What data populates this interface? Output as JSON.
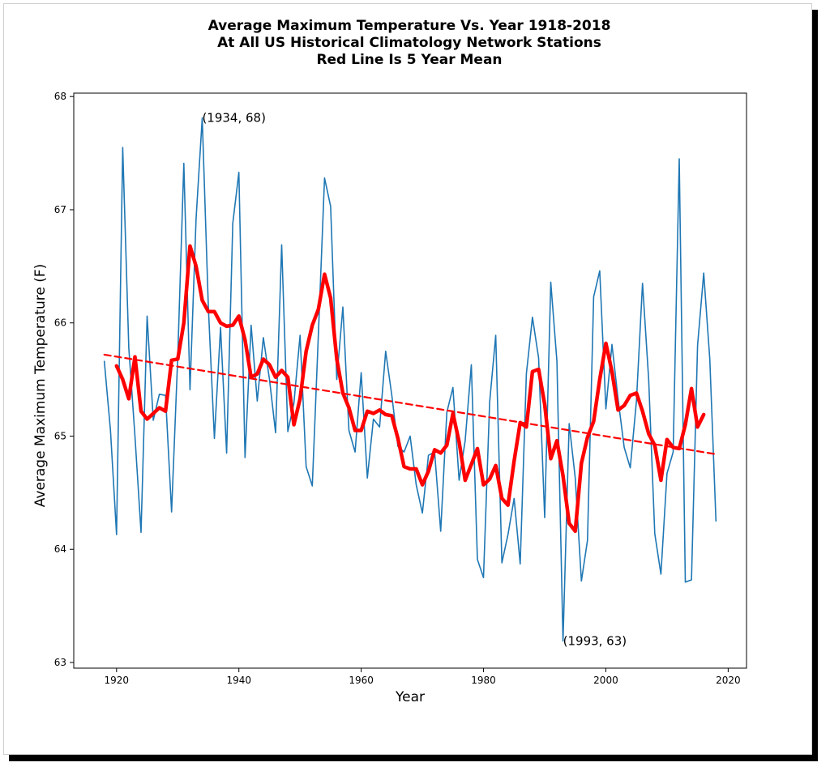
{
  "chart_data": {
    "type": "line",
    "title": [
      "Average Maximum Temperature Vs. Year 1918-2018",
      "At All US Historical Climatology Network Stations",
      "Red Line Is 5 Year Mean"
    ],
    "xlabel": "Year",
    "ylabel": "Average Maximum Temperature (F)",
    "xlim": [
      1913,
      2023
    ],
    "ylim": [
      62.95,
      68.03
    ],
    "xticks": [
      1920,
      1940,
      1960,
      1980,
      2000,
      2020
    ],
    "yticks": [
      63,
      64,
      65,
      66,
      67,
      68
    ],
    "grid": false,
    "colors": {
      "annual": "#1f77b4",
      "mean": "#ff0000",
      "trend": "#ff0000"
    },
    "series": [
      {
        "key": "annual",
        "x": [
          1918,
          1919,
          1920,
          1921,
          1922,
          1923,
          1924,
          1925,
          1926,
          1927,
          1928,
          1929,
          1930,
          1931,
          1932,
          1933,
          1934,
          1935,
          1936,
          1937,
          1938,
          1939,
          1940,
          1941,
          1942,
          1943,
          1944,
          1945,
          1946,
          1947,
          1948,
          1949,
          1950,
          1951,
          1952,
          1953,
          1954,
          1955,
          1956,
          1957,
          1958,
          1959,
          1960,
          1961,
          1962,
          1963,
          1964,
          1965,
          1966,
          1967,
          1968,
          1969,
          1970,
          1971,
          1972,
          1973,
          1974,
          1975,
          1976,
          1977,
          1978,
          1979,
          1980,
          1981,
          1982,
          1983,
          1984,
          1985,
          1986,
          1987,
          1988,
          1989,
          1990,
          1991,
          1992,
          1993,
          1994,
          1995,
          1996,
          1997,
          1998,
          1999,
          2000,
          2001,
          2002,
          2003,
          2004,
          2005,
          2006,
          2007,
          2008,
          2009,
          2010,
          2011,
          2012,
          2013,
          2014,
          2015,
          2016,
          2017,
          2018
        ],
        "y": [
          65.66,
          65.05,
          64.13,
          67.55,
          65.78,
          65.0,
          64.15,
          66.06,
          65.14,
          65.37,
          65.36,
          64.33,
          65.7,
          67.41,
          65.41,
          66.92,
          67.81,
          66.15,
          64.98,
          65.96,
          64.85,
          66.88,
          67.33,
          64.81,
          65.98,
          65.31,
          65.87,
          65.5,
          65.03,
          66.69,
          65.04,
          65.29,
          65.89,
          64.73,
          64.56,
          65.9,
          67.28,
          67.03,
          65.5,
          66.14,
          65.05,
          64.86,
          65.56,
          64.63,
          65.15,
          65.08,
          65.75,
          65.36,
          64.91,
          64.86,
          65.0,
          64.57,
          64.32,
          64.83,
          64.86,
          64.16,
          65.21,
          65.43,
          64.61,
          64.96,
          65.63,
          63.91,
          63.75,
          65.3,
          65.89,
          63.88,
          64.13,
          64.45,
          63.87,
          65.55,
          66.05,
          65.69,
          64.28,
          66.36,
          65.66,
          63.19,
          65.11,
          64.63,
          63.72,
          64.08,
          66.23,
          66.46,
          65.24,
          65.81,
          65.33,
          64.9,
          64.72,
          65.31,
          66.35,
          65.5,
          64.14,
          63.78,
          64.67,
          64.86,
          67.45,
          63.71,
          63.73,
          65.8,
          66.44,
          65.68,
          64.25
        ]
      },
      {
        "key": "mean",
        "x": [
          1920,
          1921,
          1922,
          1923,
          1924,
          1925,
          1926,
          1927,
          1928,
          1929,
          1930,
          1931,
          1932,
          1933,
          1934,
          1935,
          1936,
          1937,
          1938,
          1939,
          1940,
          1941,
          1942,
          1943,
          1944,
          1945,
          1946,
          1947,
          1948,
          1949,
          1950,
          1951,
          1952,
          1953,
          1954,
          1955,
          1956,
          1957,
          1958,
          1959,
          1960,
          1961,
          1962,
          1963,
          1964,
          1965,
          1966,
          1967,
          1968,
          1969,
          1970,
          1971,
          1972,
          1973,
          1974,
          1975,
          1976,
          1977,
          1978,
          1979,
          1980,
          1981,
          1982,
          1983,
          1984,
          1985,
          1986,
          1987,
          1988,
          1989,
          1990,
          1991,
          1992,
          1993,
          1994,
          1995,
          1996,
          1997,
          1998,
          1999,
          2000,
          2001,
          2002,
          2003,
          2004,
          2005,
          2006,
          2007,
          2008,
          2009,
          2010,
          2011,
          2012,
          2013,
          2014,
          2015,
          2016
        ],
        "y": [
          65.62,
          65.5,
          65.33,
          65.7,
          65.22,
          65.15,
          65.2,
          65.25,
          65.22,
          65.67,
          65.68,
          66.0,
          66.68,
          66.5,
          66.2,
          66.1,
          66.1,
          66.0,
          65.97,
          65.98,
          66.06,
          65.85,
          65.52,
          65.55,
          65.68,
          65.63,
          65.52,
          65.58,
          65.52,
          65.1,
          65.33,
          65.75,
          65.98,
          66.12,
          66.43,
          66.22,
          65.68,
          65.38,
          65.25,
          65.05,
          65.05,
          65.22,
          65.2,
          65.23,
          65.19,
          65.18,
          64.98,
          64.73,
          64.71,
          64.71,
          64.57,
          64.69,
          64.88,
          64.85,
          64.92,
          65.2,
          64.95,
          64.61,
          64.75,
          64.89,
          64.57,
          64.62,
          64.74,
          64.45,
          64.39,
          64.78,
          65.12,
          65.08,
          65.57,
          65.59,
          65.28,
          64.8,
          64.96,
          64.65,
          64.23,
          64.16,
          64.76,
          64.99,
          65.13,
          65.5,
          65.82,
          65.57,
          65.23,
          65.27,
          65.36,
          65.38,
          65.22,
          65.02,
          64.92,
          64.61,
          64.97,
          64.9,
          64.89,
          65.1,
          65.42,
          65.08,
          65.19
        ]
      },
      {
        "key": "trend",
        "x": [
          1918,
          2018
        ],
        "y": [
          65.72,
          64.84
        ]
      }
    ],
    "annotations": [
      {
        "text": "(1934, 68)",
        "x": 1934,
        "y": 67.81
      },
      {
        "text": "(1993, 63)",
        "x": 1993,
        "y": 63.19
      }
    ]
  }
}
